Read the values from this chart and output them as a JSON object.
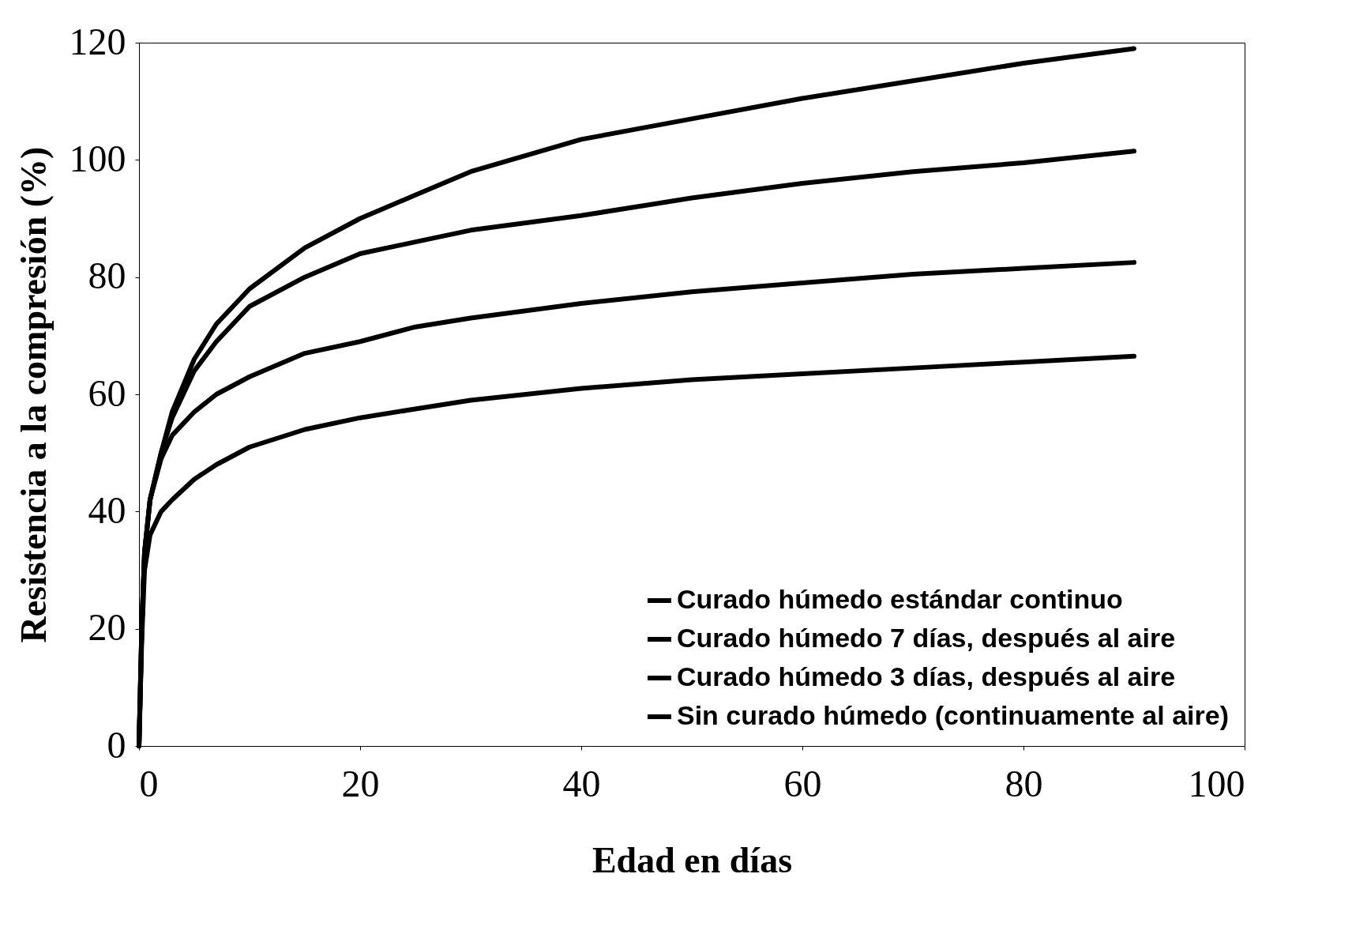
{
  "chart_data": {
    "type": "line",
    "xlabel": "Edad en días",
    "ylabel": "Resistencia a la compresión (%)",
    "xlim": [
      0,
      100
    ],
    "xticks": [
      0,
      20,
      40,
      60,
      80,
      100
    ],
    "ylim": [
      0,
      120
    ],
    "yticks": [
      0,
      20,
      40,
      60,
      80,
      100,
      120
    ],
    "grid": false,
    "legend": "bottom right",
    "marker": "none",
    "line_style": "solid",
    "series": [
      {
        "name": "Curado húmedo estándar continuo",
        "color": "#000000",
        "x": [
          0,
          0.25,
          0.5,
          1,
          2,
          3,
          5,
          7,
          10,
          15,
          20,
          25,
          30,
          40,
          50,
          60,
          70,
          80,
          90
        ],
        "values": [
          0,
          20,
          33,
          42,
          50,
          57,
          66,
          72,
          78,
          85,
          90,
          94,
          98,
          103.5,
          107,
          110.5,
          113.5,
          116.5,
          119
        ]
      },
      {
        "name": "Curado húmedo 7 días, después al aire",
        "color": "#000000",
        "x": [
          0,
          0.25,
          0.5,
          1,
          2,
          3,
          5,
          7,
          10,
          15,
          20,
          25,
          30,
          40,
          50,
          60,
          70,
          80,
          90
        ],
        "values": [
          0,
          20,
          33,
          42,
          50,
          56,
          64,
          69,
          75,
          80,
          84,
          86,
          88,
          90.5,
          93.5,
          96,
          98,
          99.5,
          101.5
        ]
      },
      {
        "name": "Curado húmedo 3 días, después al aire",
        "color": "#000000",
        "x": [
          0,
          0.25,
          0.5,
          1,
          2,
          3,
          5,
          7,
          10,
          15,
          20,
          25,
          30,
          40,
          50,
          60,
          70,
          80,
          90
        ],
        "values": [
          0,
          20,
          33,
          42,
          49,
          53,
          57,
          60,
          63,
          67,
          69,
          71.5,
          73,
          75.5,
          77.5,
          79,
          80.5,
          81.5,
          82.5
        ]
      },
      {
        "name": "Sin curado húmedo (continuamente al aire)",
        "color": "#000000",
        "x": [
          0,
          0.25,
          0.5,
          1,
          2,
          3,
          5,
          7,
          10,
          15,
          20,
          25,
          30,
          40,
          50,
          60,
          70,
          80,
          90
        ],
        "values": [
          0,
          18,
          30,
          36,
          40,
          42,
          45.5,
          48,
          51,
          54,
          56,
          57.5,
          59,
          61,
          62.5,
          63.5,
          64.5,
          65.5,
          66.5
        ]
      }
    ]
  }
}
